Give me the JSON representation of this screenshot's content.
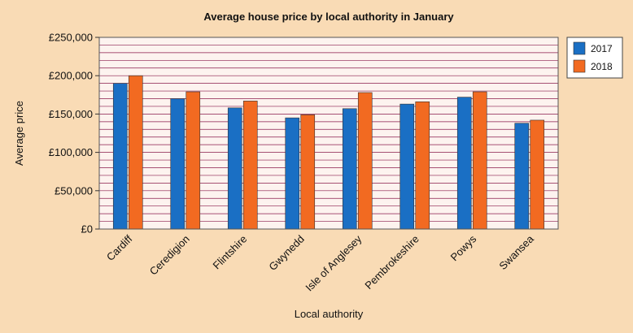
{
  "chart_data": {
    "type": "bar",
    "title": "Average house price by local authority in January",
    "xlabel": "Local authority",
    "ylabel": "Average price",
    "categories": [
      "Cardiff",
      "Ceredigion",
      "Flintshire",
      "Gwynedd",
      "Isle of Anglesey",
      "Pembrokeshire",
      "Powys",
      "Swansea"
    ],
    "series": [
      {
        "name": "2017",
        "color": "#1a6fc4",
        "values": [
          190000,
          170000,
          158000,
          145000,
          157000,
          163000,
          172000,
          138000
        ]
      },
      {
        "name": "2018",
        "color": "#f26a21",
        "values": [
          200000,
          179000,
          167000,
          149000,
          178000,
          166000,
          179000,
          142000
        ]
      }
    ],
    "ylim": [
      0,
      250000
    ],
    "yticks": [
      0,
      50000,
      100000,
      150000,
      200000,
      250000
    ],
    "ytick_labels": [
      "£0",
      "£50,000",
      "£100,000",
      "£150,000",
      "£200,000",
      "£250,000"
    ],
    "minor_grid_step": 10000,
    "legend_position": "top-right",
    "plot_background": "#fdf3ef",
    "grid_color": "#8a1a4a"
  }
}
